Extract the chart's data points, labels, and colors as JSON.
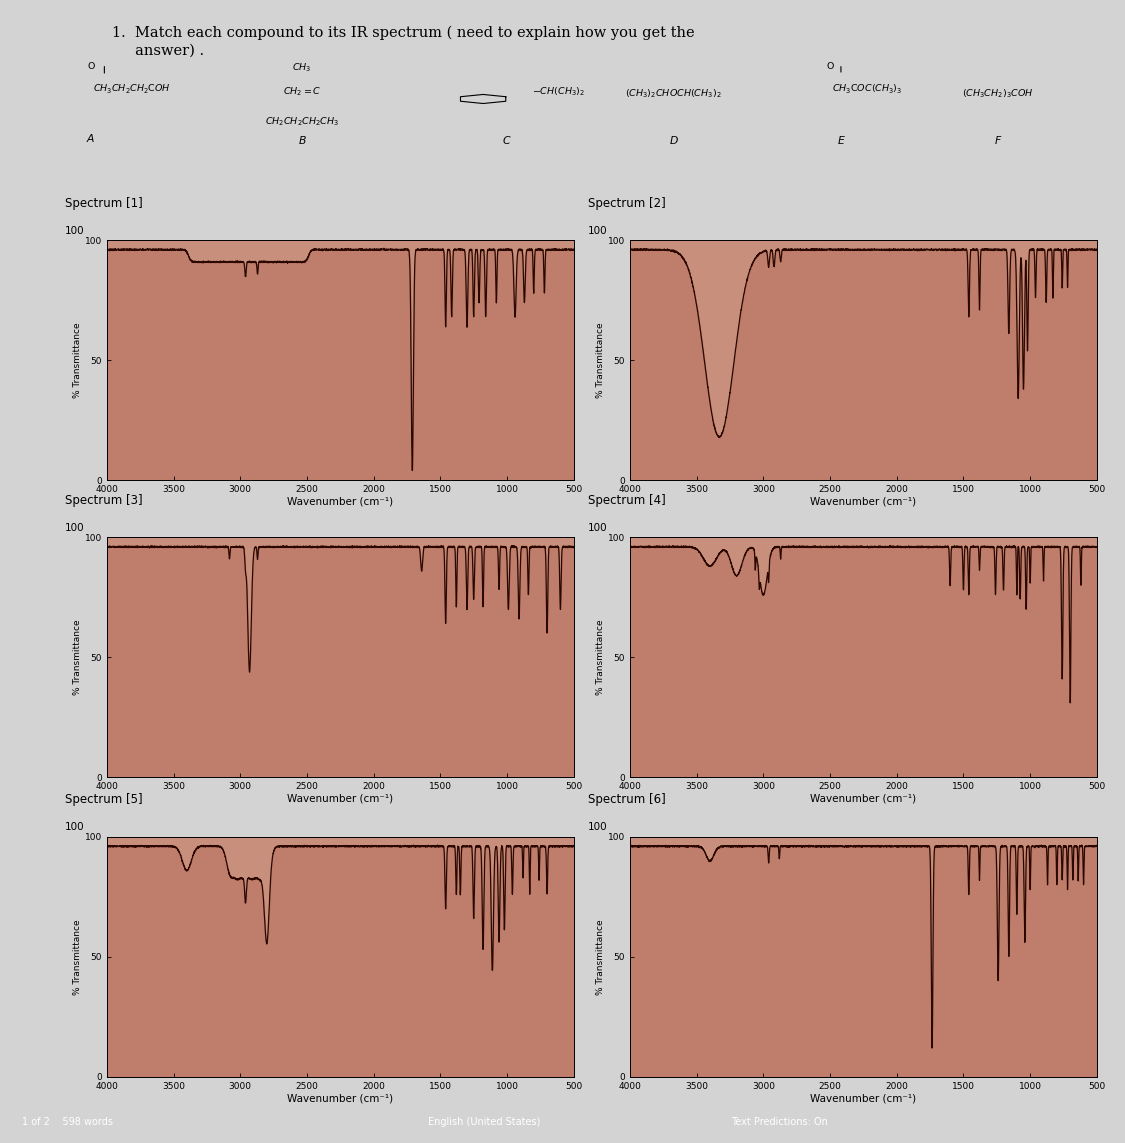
{
  "title_line1": "1.  Match each compound to its IR spectrum ( need to explain how you get the",
  "title_line2": "     answer) .",
  "bg_color": "#d3d3d3",
  "plot_bg": "#c8907c",
  "spectra_titles": [
    "Spectrum [1]",
    "Spectrum [2]",
    "Spectrum [3]",
    "Spectrum [4]",
    "Spectrum [5]",
    "Spectrum [6]"
  ],
  "xlabel": "Wavenumber (cm⁻¹)",
  "ylabel": "% Transmittance",
  "xlim": [
    4000,
    500
  ],
  "ylim": [
    0,
    100
  ],
  "yticks": [
    0,
    50,
    100
  ],
  "xticks": [
    4000,
    3500,
    3000,
    2500,
    2000,
    1500,
    1000,
    500
  ],
  "footer_left": "1 of 2    598 words",
  "footer_mid": "English (United States)",
  "footer_right": "Text Predictions: On",
  "footer_bg": "#1c1c3a",
  "line_color": "#2a0800",
  "fill_color": "#b87060"
}
